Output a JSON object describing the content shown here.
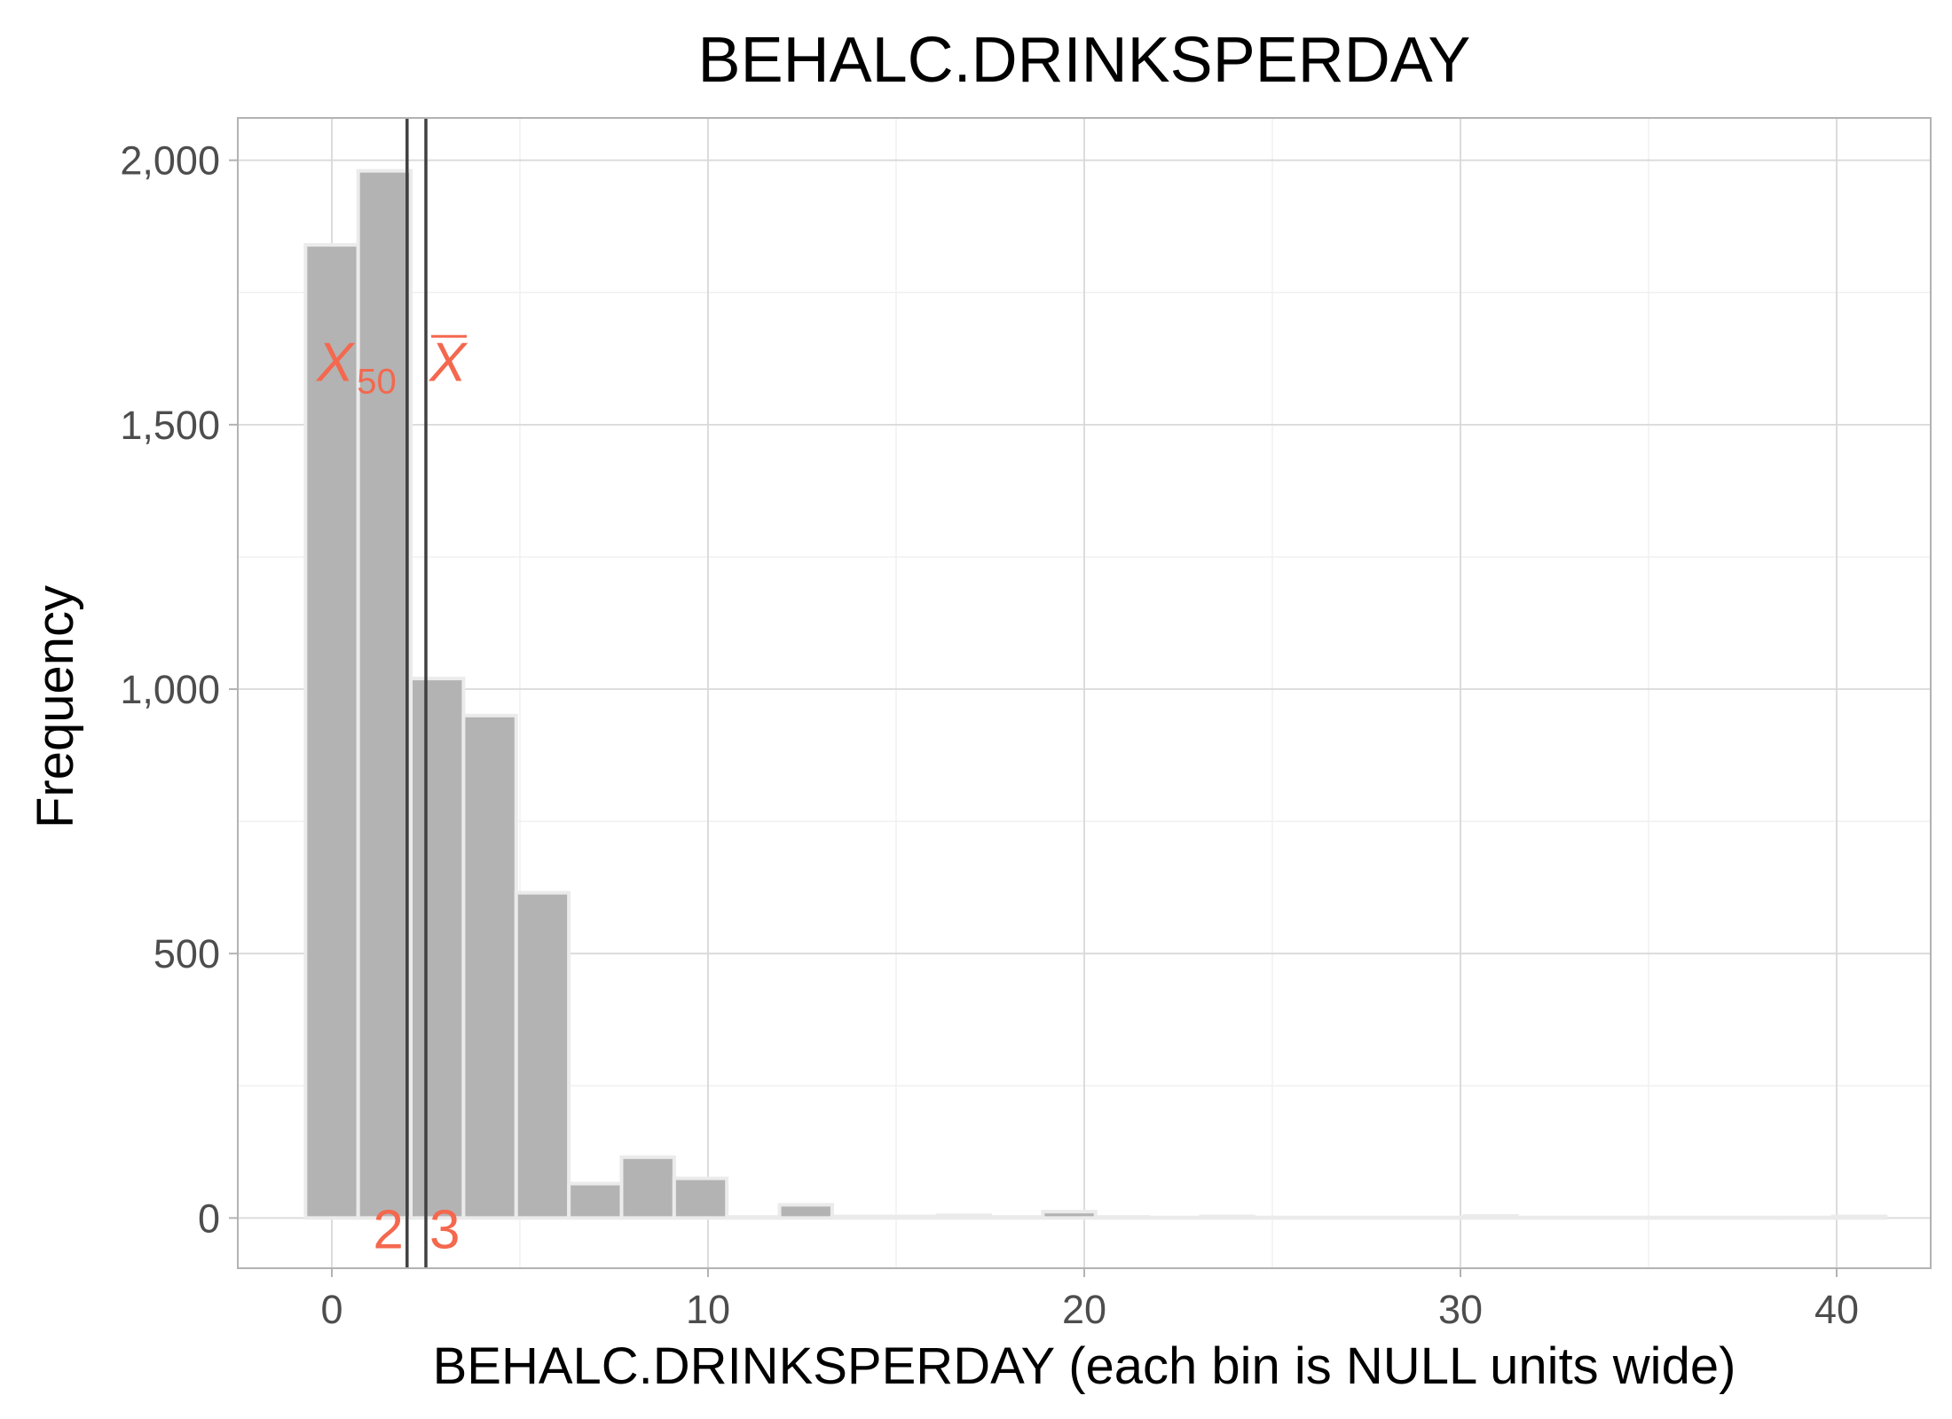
{
  "chart_data": {
    "type": "bar",
    "title": "BEHALC.DRINKSPERDAY",
    "xlabel": "BEHALC.DRINKSPERDAY (each bin is NULL units wide)",
    "ylabel": "Frequency",
    "xlim": [
      -2.5,
      42.5
    ],
    "ylim": [
      -95,
      2080
    ],
    "x_ticks": [
      0,
      10,
      20,
      30,
      40
    ],
    "x_tick_labels": [
      "0",
      "10",
      "20",
      "30",
      "40"
    ],
    "y_ticks": [
      0,
      500,
      1000,
      1500,
      2000
    ],
    "y_tick_labels": [
      "0",
      "500",
      "1,000",
      "1,500",
      "2,000"
    ],
    "grid": true,
    "bin_width": 1.4,
    "bins": [
      {
        "x": 0.0,
        "count": 1840
      },
      {
        "x": 1.4,
        "count": 1980
      },
      {
        "x": 2.8,
        "count": 1020
      },
      {
        "x": 4.2,
        "count": 950
      },
      {
        "x": 5.6,
        "count": 615
      },
      {
        "x": 7.0,
        "count": 65
      },
      {
        "x": 8.4,
        "count": 115
      },
      {
        "x": 9.8,
        "count": 75
      },
      {
        "x": 11.2,
        "count": 2
      },
      {
        "x": 12.6,
        "count": 25
      },
      {
        "x": 14.0,
        "count": 3
      },
      {
        "x": 15.4,
        "count": 3
      },
      {
        "x": 16.8,
        "count": 5
      },
      {
        "x": 18.2,
        "count": 2
      },
      {
        "x": 19.6,
        "count": 12
      },
      {
        "x": 21.0,
        "count": 2
      },
      {
        "x": 22.4,
        "count": 1
      },
      {
        "x": 23.8,
        "count": 3
      },
      {
        "x": 25.2,
        "count": 1
      },
      {
        "x": 26.6,
        "count": 1
      },
      {
        "x": 28.0,
        "count": 1
      },
      {
        "x": 29.4,
        "count": 1
      },
      {
        "x": 30.8,
        "count": 4
      },
      {
        "x": 32.2,
        "count": 1
      },
      {
        "x": 33.6,
        "count": 1
      },
      {
        "x": 35.0,
        "count": 1
      },
      {
        "x": 36.4,
        "count": 1
      },
      {
        "x": 37.8,
        "count": 1
      },
      {
        "x": 39.2,
        "count": 1
      },
      {
        "x": 40.6,
        "count": 3
      }
    ],
    "reference_lines": [
      {
        "stat": "median",
        "x": 2,
        "symbol": "X",
        "subscript": "50",
        "value_label": "2"
      },
      {
        "stat": "mean",
        "x": 2.5,
        "symbol": "X",
        "overbar": true,
        "value_label": "3"
      }
    ],
    "colors": {
      "bar_fill": "#b3b3b3",
      "bar_stroke": "#ebebeb",
      "reference_line": "#404040",
      "annotation": "#f4684e",
      "grid_major": "#d9d9d9",
      "grid_minor": "#f0f0f0",
      "panel_border": "#b3b3b3"
    }
  }
}
